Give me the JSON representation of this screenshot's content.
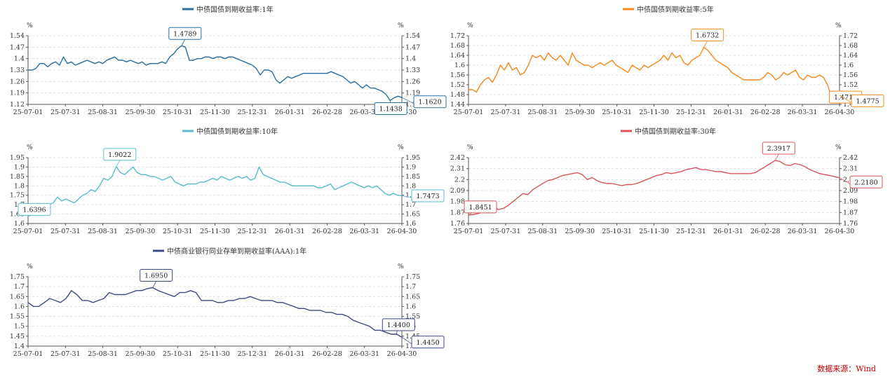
{
  "source": "数据来源：Wind",
  "chart_data": [
    {
      "type": "line",
      "title": "中债国债到期收益率:1年",
      "color": "#2b6f9e",
      "y_unit": "%",
      "yticks": [
        1.12,
        1.19,
        1.26,
        1.33,
        1.4,
        1.47,
        1.54
      ],
      "ylim": [
        1.12,
        1.54
      ],
      "x_ticks": [
        "25-07-01",
        "25-07-31",
        "25-08-31",
        "25-09-30",
        "25-10-31",
        "25-11-30",
        "25-12-31",
        "26-01-31",
        "26-02-28",
        "26-03-31",
        "26-04-30"
      ],
      "series": [
        {
          "values": [
            1.33,
            1.33,
            1.34,
            1.37,
            1.37,
            1.35,
            1.37,
            1.38,
            1.36,
            1.41,
            1.37,
            1.38,
            1.36,
            1.37,
            1.38,
            1.39,
            1.38,
            1.37,
            1.38,
            1.37,
            1.39,
            1.4,
            1.41,
            1.39,
            1.39,
            1.38,
            1.39,
            1.38,
            1.37,
            1.38,
            1.36,
            1.37,
            1.37,
            1.37,
            1.38,
            1.37,
            1.41,
            1.43,
            1.46,
            1.4789,
            1.47,
            1.39,
            1.39,
            1.4,
            1.4,
            1.41,
            1.41,
            1.4,
            1.41,
            1.41,
            1.4,
            1.41,
            1.41,
            1.4,
            1.39,
            1.38,
            1.37,
            1.36,
            1.34,
            1.3,
            1.33,
            1.33,
            1.32,
            1.27,
            1.25,
            1.27,
            1.29,
            1.28,
            1.29,
            1.3,
            1.31,
            1.31,
            1.31,
            1.31,
            1.31,
            1.31,
            1.31,
            1.32,
            1.31,
            1.3,
            1.29,
            1.27,
            1.25,
            1.26,
            1.24,
            1.22,
            1.24,
            1.22,
            1.22,
            1.21,
            1.2,
            1.18,
            1.1438,
            1.16,
            1.17,
            1.162
          ]
        }
      ],
      "annotations": [
        {
          "label": "1.4789"
        },
        {
          "label": "1.1438"
        },
        {
          "label": "1.1620"
        }
      ]
    },
    {
      "type": "line",
      "title": "中债国债到期收益率:5年",
      "color": "#f28c1e",
      "y_unit": "%",
      "yticks": [
        1.44,
        1.48,
        1.52,
        1.56,
        1.6,
        1.64,
        1.68,
        1.72
      ],
      "ylim": [
        1.44,
        1.72
      ],
      "x_ticks": [
        "25-07-01",
        "25-07-31",
        "25-08-31",
        "25-09-30",
        "25-10-31",
        "25-11-30",
        "25-12-31",
        "26-01-31",
        "26-02-28",
        "26-03-31",
        "26-04-30"
      ],
      "series": [
        {
          "values": [
            1.5,
            1.5,
            1.49,
            1.52,
            1.54,
            1.55,
            1.53,
            1.56,
            1.6,
            1.58,
            1.61,
            1.58,
            1.59,
            1.56,
            1.57,
            1.6,
            1.64,
            1.63,
            1.64,
            1.62,
            1.65,
            1.63,
            1.62,
            1.64,
            1.62,
            1.6,
            1.65,
            1.62,
            1.61,
            1.6,
            1.6,
            1.59,
            1.6,
            1.61,
            1.6,
            1.61,
            1.62,
            1.6,
            1.59,
            1.58,
            1.57,
            1.6,
            1.59,
            1.58,
            1.6,
            1.59,
            1.6,
            1.61,
            1.62,
            1.64,
            1.62,
            1.65,
            1.63,
            1.64,
            1.61,
            1.6,
            1.62,
            1.63,
            1.64,
            1.6732,
            1.66,
            1.64,
            1.62,
            1.61,
            1.6,
            1.59,
            1.57,
            1.56,
            1.55,
            1.54,
            1.54,
            1.54,
            1.54,
            1.54,
            1.55,
            1.57,
            1.56,
            1.54,
            1.55,
            1.57,
            1.56,
            1.57,
            1.58,
            1.55,
            1.54,
            1.56,
            1.55,
            1.55,
            1.56,
            1.55,
            1.52,
            1.471,
            1.48,
            1.4775
          ]
        }
      ],
      "annotations": [
        {
          "label": "1.6732"
        },
        {
          "label": "1.4710"
        },
        {
          "label": "1.4775"
        }
      ]
    },
    {
      "type": "line",
      "title": "中债国债到期收益率:10年",
      "color": "#5bbcc8",
      "y_unit": "%",
      "yticks": [
        1.6,
        1.65,
        1.7,
        1.75,
        1.8,
        1.85,
        1.9,
        1.95
      ],
      "ylim": [
        1.6,
        1.95
      ],
      "x_ticks": [
        "25-07-01",
        "25-07-31",
        "25-08-31",
        "25-09-30",
        "25-10-31",
        "25-11-30",
        "25-12-31",
        "26-01-31",
        "26-02-28",
        "26-03-31",
        "26-04-30"
      ],
      "series": [
        {
          "values": [
            1.6396,
            1.645,
            1.65,
            1.66,
            1.68,
            1.7,
            1.71,
            1.74,
            1.72,
            1.73,
            1.72,
            1.71,
            1.73,
            1.75,
            1.76,
            1.78,
            1.77,
            1.8,
            1.84,
            1.83,
            1.85,
            1.9022,
            1.87,
            1.86,
            1.88,
            1.9,
            1.87,
            1.86,
            1.86,
            1.85,
            1.85,
            1.84,
            1.83,
            1.84,
            1.85,
            1.82,
            1.81,
            1.8,
            1.81,
            1.81,
            1.81,
            1.82,
            1.82,
            1.83,
            1.84,
            1.83,
            1.85,
            1.84,
            1.83,
            1.84,
            1.85,
            1.84,
            1.85,
            1.83,
            1.84,
            1.9,
            1.86,
            1.85,
            1.84,
            1.83,
            1.82,
            1.82,
            1.81,
            1.8,
            1.8,
            1.8,
            1.8,
            1.8,
            1.8,
            1.79,
            1.79,
            1.8,
            1.81,
            1.78,
            1.79,
            1.8,
            1.81,
            1.82,
            1.81,
            1.8,
            1.79,
            1.8,
            1.79,
            1.8,
            1.78,
            1.76,
            1.75,
            1.76,
            1.75,
            1.7473
          ]
        }
      ],
      "annotations": [
        {
          "label": "1.9022"
        },
        {
          "label": "1.6396"
        },
        {
          "label": "1.7473"
        }
      ]
    },
    {
      "type": "line",
      "title": "中债国债到期收益率:30年",
      "color": "#d9545a",
      "y_unit": "%",
      "yticks": [
        1.76,
        1.87,
        1.98,
        2.09,
        2.2,
        2.31,
        2.42
      ],
      "ylim": [
        1.76,
        2.42
      ],
      "x_ticks": [
        "25-07-01",
        "25-07-31",
        "25-08-31",
        "25-09-30",
        "25-10-31",
        "25-11-30",
        "25-12-31",
        "26-01-31",
        "26-02-28",
        "26-03-31",
        "26-04-30"
      ],
      "series": [
        {
          "values": [
            1.8451,
            1.85,
            1.86,
            1.88,
            1.9,
            1.93,
            1.9,
            1.91,
            1.94,
            1.98,
            2.02,
            2.06,
            2.05,
            2.1,
            2.13,
            2.16,
            2.19,
            2.2,
            2.22,
            2.24,
            2.25,
            2.26,
            2.27,
            2.25,
            2.2,
            2.22,
            2.19,
            2.17,
            2.16,
            2.16,
            2.15,
            2.14,
            2.15,
            2.15,
            2.16,
            2.18,
            2.2,
            2.22,
            2.24,
            2.25,
            2.27,
            2.26,
            2.27,
            2.28,
            2.3,
            2.31,
            2.32,
            2.3,
            2.3,
            2.29,
            2.28,
            2.28,
            2.27,
            2.26,
            2.26,
            2.26,
            2.26,
            2.26,
            2.27,
            2.3,
            2.33,
            2.36,
            2.3917,
            2.38,
            2.35,
            2.34,
            2.36,
            2.35,
            2.33,
            2.3,
            2.28,
            2.26,
            2.25,
            2.24,
            2.23,
            2.218
          ]
        }
      ],
      "annotations": [
        {
          "label": "2.3917"
        },
        {
          "label": "1.8451"
        },
        {
          "label": "2.2180"
        }
      ]
    },
    {
      "type": "line",
      "title": "中债商业银行同业存单到期收益率(AAA):1年",
      "color": "#3d4a82",
      "y_unit": "%",
      "yticks": [
        1.4,
        1.45,
        1.5,
        1.55,
        1.6,
        1.65,
        1.7,
        1.75
      ],
      "ylim": [
        1.4,
        1.75
      ],
      "x_ticks": [
        "25-07-01",
        "25-07-31",
        "25-08-31",
        "25-09-30",
        "25-10-31",
        "25-11-30",
        "25-12-31",
        "26-01-31",
        "26-02-28",
        "26-03-31",
        "26-04-30"
      ],
      "series": [
        {
          "values": [
            1.62,
            1.6,
            1.6,
            1.62,
            1.64,
            1.63,
            1.62,
            1.64,
            1.68,
            1.66,
            1.63,
            1.63,
            1.62,
            1.63,
            1.64,
            1.67,
            1.66,
            1.66,
            1.66,
            1.67,
            1.68,
            1.68,
            1.69,
            1.695,
            1.68,
            1.67,
            1.66,
            1.65,
            1.67,
            1.67,
            1.68,
            1.67,
            1.63,
            1.63,
            1.63,
            1.62,
            1.62,
            1.63,
            1.63,
            1.64,
            1.64,
            1.65,
            1.64,
            1.63,
            1.63,
            1.63,
            1.62,
            1.62,
            1.61,
            1.6,
            1.59,
            1.59,
            1.58,
            1.58,
            1.58,
            1.57,
            1.57,
            1.56,
            1.56,
            1.55,
            1.53,
            1.52,
            1.51,
            1.5,
            1.48,
            1.48,
            1.47,
            1.46,
            1.46,
            1.445
          ]
        }
      ],
      "annotations": [
        {
          "label": "1.6950"
        },
        {
          "label": "1.4400"
        },
        {
          "label": "1.4450"
        }
      ]
    }
  ]
}
